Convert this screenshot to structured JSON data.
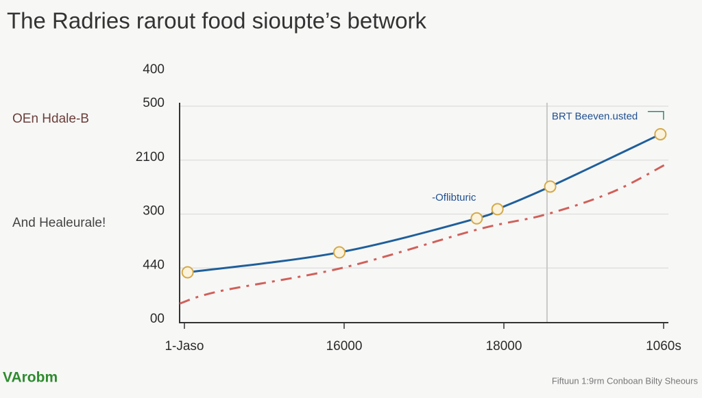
{
  "chart_data": {
    "type": "line",
    "title": "The Radries rarout food sioupte’s betwork",
    "side_labels": [
      "OEn Hdale-B",
      "And Healeurale!"
    ],
    "y_top_label": "400",
    "footer_left": "VArobm",
    "footer_right": "Fiftuun 1:9rm Conboan Bilty Sheours",
    "xlim": [
      -0.03,
      3.03
    ],
    "xticks": [
      {
        "value": 0,
        "label": "1-Jaso"
      },
      {
        "value": 1,
        "label": "16000"
      },
      {
        "value": 2,
        "label": "18000"
      },
      {
        "value": 3,
        "label": "1060s"
      }
    ],
    "ylim": [
      0,
      4
    ],
    "yticks": [
      {
        "value": 0,
        "label": "00"
      },
      {
        "value": 1,
        "label": "440"
      },
      {
        "value": 2,
        "label": "300"
      },
      {
        "value": 3,
        "label": "2100"
      },
      {
        "value": 4,
        "label": "500"
      }
    ],
    "grid": true,
    "vline": 2.27,
    "annotations": [
      {
        "text": "BRT Beeven.usted",
        "x": 2.3,
        "y": 3.8
      },
      {
        "text": "-Oflibturic",
        "x": 1.55,
        "y": 2.3
      }
    ],
    "series": [
      {
        "color": "#1f5f9a",
        "style": "solid",
        "markers": true,
        "x": [
          0.02,
          0.97,
          1.83,
          1.96,
          2.29,
          2.98
        ],
        "values": [
          0.92,
          1.29,
          1.92,
          2.09,
          2.51,
          3.48
        ]
      },
      {
        "color": "#d0605a",
        "style": "dashed",
        "markers": false,
        "x": [
          -0.03,
          0.22,
          1.0,
          1.83,
          2.26,
          2.68,
          3.03
        ],
        "values": [
          0.34,
          0.57,
          1.01,
          1.71,
          1.99,
          2.41,
          2.95
        ]
      }
    ]
  }
}
